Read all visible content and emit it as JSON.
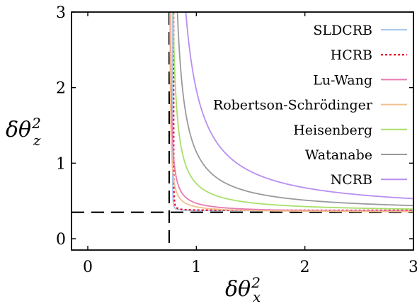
{
  "chart_data": {
    "type": "line",
    "title": "",
    "xlabel": "δθ²ₓ",
    "ylabel": "δθ²z",
    "xlabel_base": "δθ",
    "xlabel_sup": "2",
    "xlabel_sub": "x",
    "ylabel_base": "δθ",
    "ylabel_sup": "2",
    "ylabel_sub": "z",
    "xlim": [
      -0.15,
      3
    ],
    "ylim": [
      -0.15,
      3
    ],
    "x_ticks": [
      "0",
      "1",
      "2",
      "3"
    ],
    "y_ticks": [
      "0",
      "1",
      "2",
      "3"
    ],
    "grid": false,
    "legend_position": "top-right",
    "asymptotes": {
      "x": 0.75,
      "y": 0.35
    },
    "series": [
      {
        "name": "SLDCRB",
        "color": "#a8c8ee",
        "style": "solid",
        "asymptote_x": 0.78,
        "asymptote_y": 0.37,
        "strength": 0.0008
      },
      {
        "name": "HCRB",
        "color": "#e8102a",
        "style": "dotted",
        "asymptote_x": 0.79,
        "asymptote_y": 0.375,
        "strength": 0.001
      },
      {
        "name": "Lu-Wang",
        "color": "#e87ab0",
        "style": "solid",
        "asymptote_x": 0.75,
        "asymptote_y": 0.35,
        "strength": 0.03
      },
      {
        "name": "Robertson-Schrödinger",
        "color": "#f2c08e",
        "style": "solid",
        "asymptote_x": 0.75,
        "asymptote_y": 0.35,
        "strength": 0.018
      },
      {
        "name": "Heisenberg",
        "color": "#a8e06a",
        "style": "solid",
        "asymptote_x": 0.75,
        "asymptote_y": 0.35,
        "strength": 0.095
      },
      {
        "name": "Watanabe",
        "color": "#9a9a9a",
        "style": "solid",
        "asymptote_x": 0.75,
        "asymptote_y": 0.35,
        "strength": 0.2
      },
      {
        "name": "NCRB",
        "color": "#b98ef0",
        "style": "solid",
        "asymptote_x": 0.75,
        "asymptote_y": 0.35,
        "strength": 0.405
      }
    ]
  }
}
